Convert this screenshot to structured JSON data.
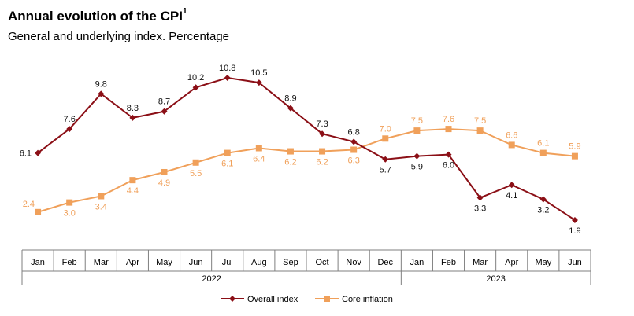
{
  "title": "Annual evolution of the CPI",
  "title_superscript": "1",
  "subtitle": "General and underlying index. Percentage",
  "colors": {
    "overall": "#8b0f16",
    "core": "#f0a05a",
    "axis": "#7f7f7f"
  },
  "chart_data": {
    "type": "line",
    "categories": [
      "Jan",
      "Feb",
      "Mar",
      "Apr",
      "May",
      "Jun",
      "Jul",
      "Aug",
      "Sep",
      "Oct",
      "Nov",
      "Dec",
      "Jan",
      "Feb",
      "Mar",
      "Apr",
      "May",
      "Jun"
    ],
    "year_groups": [
      {
        "label": "2022",
        "count": 12
      },
      {
        "label": "2023",
        "count": 6
      }
    ],
    "series": [
      {
        "name": "Overall index",
        "marker": "diamond",
        "values": [
          6.1,
          7.6,
          9.8,
          8.3,
          8.7,
          10.2,
          10.8,
          10.5,
          8.9,
          7.3,
          6.8,
          5.7,
          5.9,
          6.0,
          3.3,
          4.1,
          3.2,
          1.9
        ]
      },
      {
        "name": "Core inflation",
        "marker": "square",
        "values": [
          2.4,
          3.0,
          3.4,
          4.4,
          4.9,
          5.5,
          6.1,
          6.4,
          6.2,
          6.2,
          6.3,
          7.0,
          7.5,
          7.6,
          7.5,
          6.6,
          6.1,
          5.9
        ]
      }
    ],
    "ylim": [
      1,
      12
    ],
    "legend_position": "bottom-center",
    "grid": false
  }
}
